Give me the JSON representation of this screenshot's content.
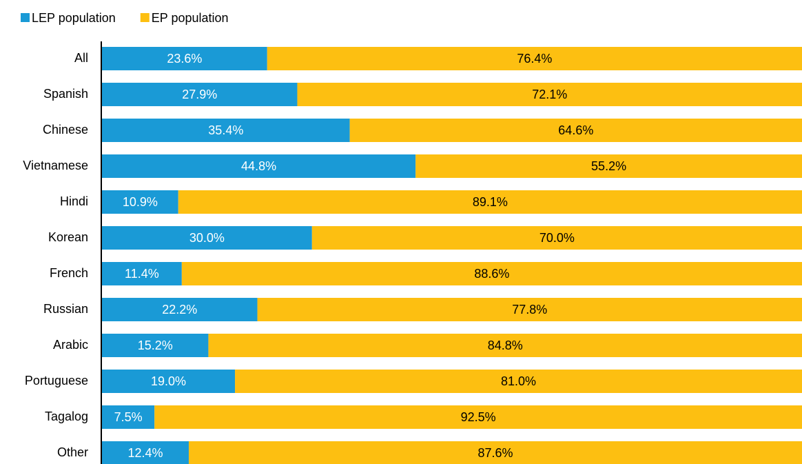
{
  "chart_data": {
    "type": "stacked-bar-horizontal",
    "categories": [
      "All",
      "Spanish",
      "Chinese",
      "Vietnamese",
      "Hindi",
      "Korean",
      "French",
      "Russian",
      "Arabic",
      "Portuguese",
      "Tagalog",
      "Other"
    ],
    "series": [
      {
        "name": "LEP population",
        "color": "#1a9ad6",
        "label_color": "#ffffff",
        "values": [
          23.6,
          27.9,
          35.4,
          44.8,
          10.9,
          30.0,
          11.4,
          22.2,
          15.2,
          19.0,
          7.5,
          12.4
        ],
        "value_labels": [
          "23.6%",
          "27.9%",
          "35.4%",
          "44.8%",
          "10.9%",
          "30.0%",
          "11.4%",
          "22.2%",
          "15.2%",
          "19.0%",
          "7.5%",
          "12.4%"
        ]
      },
      {
        "name": "EP population",
        "color": "#fdbf11",
        "label_color": "#000000",
        "values": [
          76.4,
          72.1,
          64.6,
          55.2,
          89.1,
          70.0,
          88.6,
          77.8,
          84.8,
          81.0,
          92.5,
          87.6
        ],
        "value_labels": [
          "76.4%",
          "72.1%",
          "64.6%",
          "55.2%",
          "89.1%",
          "70.0%",
          "88.6%",
          "77.8%",
          "84.8%",
          "81.0%",
          "92.5%",
          "87.6%"
        ]
      }
    ],
    "xlim": [
      0,
      100
    ],
    "legend": "top-left"
  }
}
